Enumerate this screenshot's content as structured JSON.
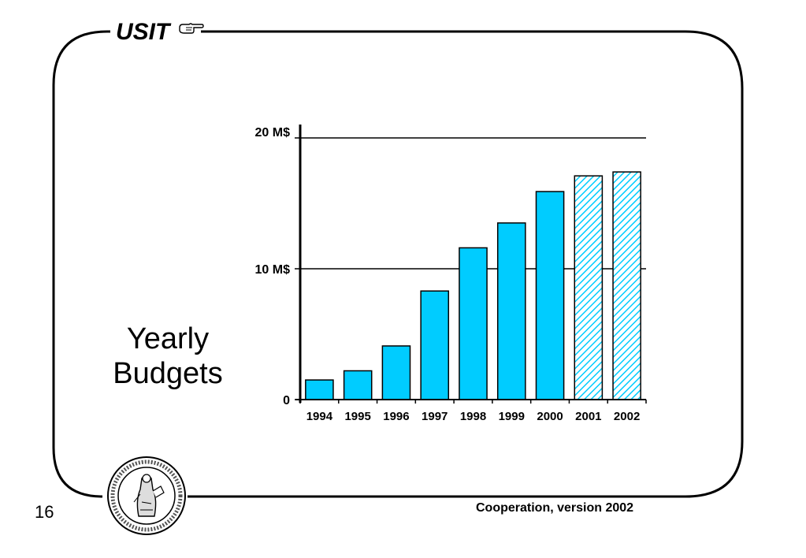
{
  "header": {
    "title": "USIT",
    "icon": "pointing-hand-icon"
  },
  "side_title": {
    "line1": "Yearly",
    "line2": "Budgets"
  },
  "slide_number": "16",
  "footer": {
    "text": "Cooperation, version 2002"
  },
  "seal": {
    "icon": "university-seal-icon"
  },
  "colors": {
    "bar_fill": "#00ccff",
    "bar_stroke": "#000000",
    "projected_hatch": "#00ccff"
  },
  "chart_data": {
    "type": "bar",
    "categories": [
      "1994",
      "1995",
      "1996",
      "1997",
      "1998",
      "1999",
      "2000",
      "2001",
      "2002"
    ],
    "values": [
      1.5,
      2.2,
      4.1,
      8.3,
      11.6,
      13.5,
      15.9,
      17.1,
      17.4
    ],
    "projected": [
      false,
      false,
      false,
      false,
      false,
      false,
      false,
      true,
      true
    ],
    "ylim": [
      0,
      20
    ],
    "yticks": [
      {
        "value": 0,
        "label": "0"
      },
      {
        "value": 10,
        "label": "10 M$"
      },
      {
        "value": 20,
        "label": "20 M$"
      }
    ],
    "gridlines": [
      10,
      20
    ],
    "title": "",
    "xlabel": "",
    "ylabel": ""
  }
}
